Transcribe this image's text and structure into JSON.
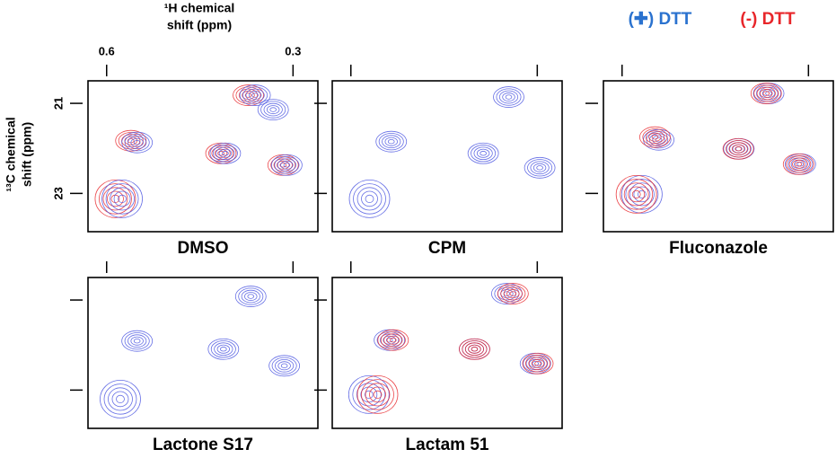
{
  "legend": {
    "series": [
      {
        "name": "(✚) DTT",
        "color": "#2a72cf"
      },
      {
        "name": "(-) DTT",
        "color": "#e8262a"
      }
    ]
  },
  "x_label": [
    "¹H chemical",
    "shift (ppm)"
  ],
  "y_label": [
    "¹³C chemical",
    "shift (ppm)"
  ],
  "chart_data": [
    {
      "type": "contour",
      "title": "DMSO",
      "tick_labels": true,
      "xlim": [
        0.63,
        0.26
      ],
      "ylim": [
        20.5,
        23.85
      ],
      "xticks": [
        0.6,
        0.3
      ],
      "yticks": [
        21,
        23
      ],
      "series": [
        {
          "color": "#e8262a",
          "x": [
            0.586,
            0.561,
            0.416,
            0.372,
            0.316
          ],
          "y": [
            23.12,
            21.83,
            22.11,
            20.82,
            22.37
          ]
        },
        {
          "color": "#4a55e0",
          "x": [
            0.575,
            0.551,
            0.409,
            0.361,
            0.332,
            0.31
          ],
          "y": [
            23.12,
            21.87,
            22.11,
            20.82,
            21.14,
            22.37
          ]
        }
      ]
    },
    {
      "type": "contour",
      "title": "CPM",
      "tick_labels": false,
      "xlim": [
        0.63,
        0.26
      ],
      "ylim": [
        20.5,
        23.85
      ],
      "xticks": [
        0.6,
        0.3
      ],
      "yticks": [
        21,
        23
      ],
      "series": [
        {
          "color": "#4a55e0",
          "x": [
            0.57,
            0.535,
            0.387,
            0.346,
            0.296
          ],
          "y": [
            23.12,
            21.85,
            22.11,
            20.86,
            22.43
          ]
        }
      ]
    },
    {
      "type": "contour",
      "title": "Fluconazole",
      "tick_labels": false,
      "xlim": [
        0.63,
        0.26
      ],
      "ylim": [
        20.5,
        23.85
      ],
      "xticks": [
        0.6,
        0.3
      ],
      "yticks": [
        21,
        23
      ],
      "series": [
        {
          "color": "#4a55e0",
          "x": [
            0.568,
            0.541,
            0.412,
            0.364,
            0.313
          ],
          "y": [
            23.02,
            21.81,
            22.01,
            20.78,
            22.35
          ]
        },
        {
          "color": "#e8262a",
          "x": [
            0.577,
            0.547,
            0.413,
            0.368,
            0.316
          ],
          "y": [
            23.02,
            21.75,
            22.01,
            20.78,
            22.35
          ]
        }
      ]
    },
    {
      "type": "contour",
      "title": "Lactone S17",
      "tick_labels": false,
      "xlim": [
        0.63,
        0.26
      ],
      "ylim": [
        20.5,
        23.85
      ],
      "xticks": [
        0.6,
        0.3
      ],
      "yticks": [
        21,
        23
      ],
      "series": [
        {
          "color": "#4a55e0",
          "x": [
            0.578,
            0.551,
            0.412,
            0.368,
            0.314
          ],
          "y": [
            23.2,
            21.91,
            22.09,
            20.92,
            22.46
          ]
        }
      ]
    },
    {
      "type": "contour",
      "title": "Lactam 51",
      "tick_labels": false,
      "xlim": [
        0.63,
        0.26
      ],
      "ylim": [
        20.5,
        23.85
      ],
      "xticks": [
        0.6,
        0.3
      ],
      "yticks": [
        21,
        23
      ],
      "series": [
        {
          "color": "#4a55e0",
          "x": [
            0.571,
            0.538,
            0.401,
            0.349,
            0.303
          ],
          "y": [
            23.1,
            21.89,
            22.09,
            20.86,
            22.41
          ]
        },
        {
          "color": "#e8262a",
          "x": [
            0.557,
            0.532,
            0.401,
            0.339,
            0.299
          ],
          "y": [
            23.1,
            21.89,
            22.09,
            20.86,
            22.41
          ]
        }
      ]
    }
  ]
}
